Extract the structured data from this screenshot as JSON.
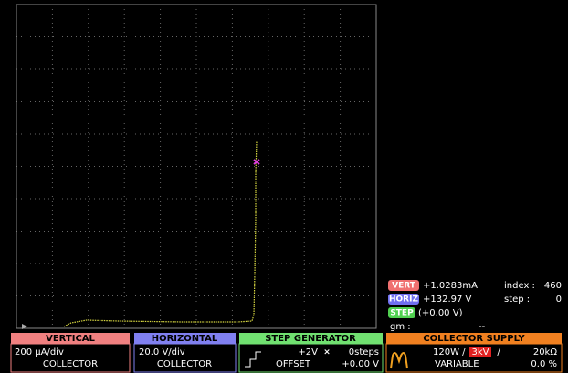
{
  "readout": {
    "vert_badge": "VERT",
    "vert_value": "+1.0283mA",
    "index_label": "index :",
    "index_value": "460",
    "horiz_badge": "HORIZ",
    "horiz_value": "+132.97 V",
    "step_label": "step :",
    "step_value": "0",
    "step_badge": "STEP",
    "step_value_text": "(+0.00 V)",
    "gm_label": "gm :",
    "gm_value": "--"
  },
  "panels": {
    "vertical": {
      "title": "VERTICAL",
      "scale": "200 µA/div",
      "source": "COLLECTOR"
    },
    "horizontal": {
      "title": "HORIZONTAL",
      "scale": "20.0 V/div",
      "source": "COLLECTOR"
    },
    "step_generator": {
      "title": "STEP GENERATOR",
      "amplitude": "+2V",
      "times": "×",
      "steps": "0steps",
      "offset_label": "OFFSET",
      "offset_value": "+0.00 V"
    },
    "collector_supply": {
      "title": "COLLECTOR SUPPLY",
      "power": "120W /",
      "voltage": "3kV",
      "sep": "/",
      "resistance": "20kΩ",
      "mode": "VARIABLE",
      "percent": "0.0 %"
    }
  }
}
